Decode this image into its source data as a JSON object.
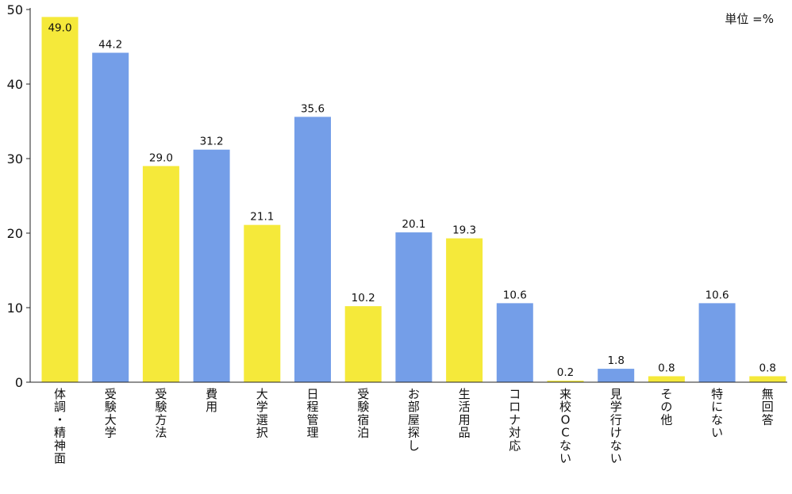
{
  "chart_data": {
    "type": "bar",
    "unit_label": "単位 =%",
    "categories": [
      "体調・精神面",
      "受験大学",
      "受験方法",
      "費用",
      "大学選択",
      "日程管理",
      "受験宿泊",
      "お部屋探し",
      "生活用品",
      "コロナ対応",
      "来校OCない",
      "見学行けない",
      "その他",
      "特にない",
      "無回答"
    ],
    "values": [
      49.0,
      44.2,
      29.0,
      31.2,
      21.1,
      35.6,
      10.2,
      20.1,
      19.3,
      10.6,
      0.2,
      1.8,
      0.8,
      10.6,
      0.8
    ],
    "value_labels": [
      "49.0",
      "44.2",
      "29.0",
      "31.2",
      "21.1",
      "35.6",
      "10.2",
      "20.1",
      "19.3",
      "10.6",
      "0.2",
      "1.8",
      "0.8",
      "10.6",
      "0.8"
    ],
    "bar_colors": [
      "#f5e93a",
      "#749ee8",
      "#f5e93a",
      "#749ee8",
      "#f5e93a",
      "#749ee8",
      "#f5e93a",
      "#749ee8",
      "#f5e93a",
      "#749ee8",
      "#f5e93a",
      "#749ee8",
      "#f5e93a",
      "#749ee8",
      "#f5e93a"
    ],
    "yticks": [
      0,
      10,
      20,
      30,
      40,
      50
    ],
    "ylim": [
      0,
      50
    ],
    "grid": false,
    "legend": "none"
  }
}
